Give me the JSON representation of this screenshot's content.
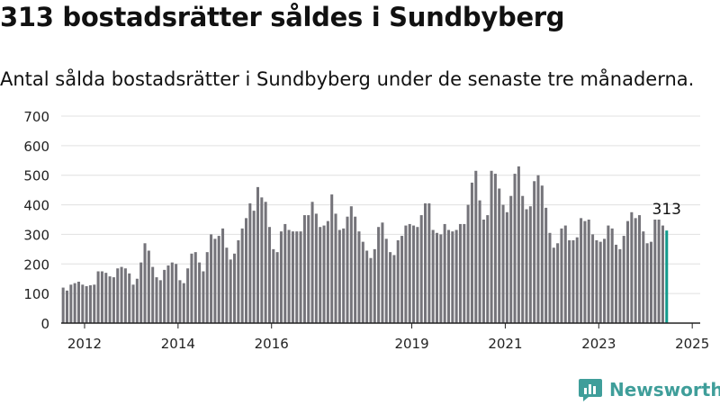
{
  "header": {
    "title": "313 bostadsrätter såldes i Sundbyberg",
    "subtitle": "Antal sålda bostadsrätter i Sundbyberg under de senaste tre månaderna."
  },
  "brand": {
    "name": "Newsworthy",
    "icon": "newsworthy-logo-icon",
    "color": "#3f9e9a"
  },
  "colors": {
    "bar": "#75747a",
    "highlight": "#119a8c",
    "grid": "#e0e0e0",
    "axis": "#222222"
  },
  "chart_data": {
    "type": "bar",
    "title": "313 bostadsrätter såldes i Sundbyberg",
    "subtitle": "Antal sålda bostadsrätter i Sundbyberg under de senaste tre månaderna.",
    "ylim": [
      0,
      700
    ],
    "yticks": [
      "0",
      "100",
      "200",
      "300",
      "400",
      "500",
      "600",
      "700"
    ],
    "xlim": [
      2011.5,
      2025.17
    ],
    "xticks": [
      {
        "label": "2012",
        "x": 2012.0
      },
      {
        "label": "2014",
        "x": 2014.0
      },
      {
        "label": "2016",
        "x": 2016.0
      },
      {
        "label": "2019",
        "x": 2019.0
      },
      {
        "label": "2021",
        "x": 2021.0
      },
      {
        "label": "2023",
        "x": 2023.0
      },
      {
        "label": "2025",
        "x": 2025.0
      }
    ],
    "x_start": 2011.5,
    "x_step": 0.0833,
    "grid": true,
    "highlight_label": "313",
    "values": [
      120,
      110,
      130,
      135,
      140,
      130,
      125,
      128,
      130,
      175,
      175,
      170,
      158,
      155,
      185,
      190,
      185,
      168,
      130,
      150,
      205,
      270,
      245,
      190,
      155,
      145,
      180,
      195,
      205,
      200,
      145,
      135,
      185,
      235,
      240,
      205,
      175,
      240,
      300,
      285,
      295,
      320,
      255,
      215,
      235,
      280,
      320,
      355,
      405,
      380,
      460,
      425,
      410,
      325,
      250,
      240,
      310,
      335,
      315,
      310,
      310,
      310,
      365,
      365,
      410,
      370,
      325,
      330,
      345,
      435,
      370,
      315,
      320,
      360,
      395,
      360,
      310,
      275,
      245,
      220,
      250,
      325,
      340,
      285,
      240,
      230,
      280,
      295,
      330,
      335,
      330,
      325,
      365,
      405,
      405,
      315,
      305,
      300,
      335,
      315,
      310,
      315,
      335,
      335,
      400,
      475,
      515,
      415,
      350,
      365,
      515,
      505,
      455,
      400,
      375,
      430,
      505,
      530,
      430,
      385,
      395,
      480,
      500,
      465,
      390,
      305,
      255,
      270,
      320,
      330,
      280,
      280,
      290,
      355,
      345,
      350,
      300,
      280,
      275,
      285,
      330,
      320,
      265,
      250,
      295,
      345,
      375,
      355,
      365,
      310,
      270,
      275,
      350,
      350,
      330,
      313
    ]
  }
}
